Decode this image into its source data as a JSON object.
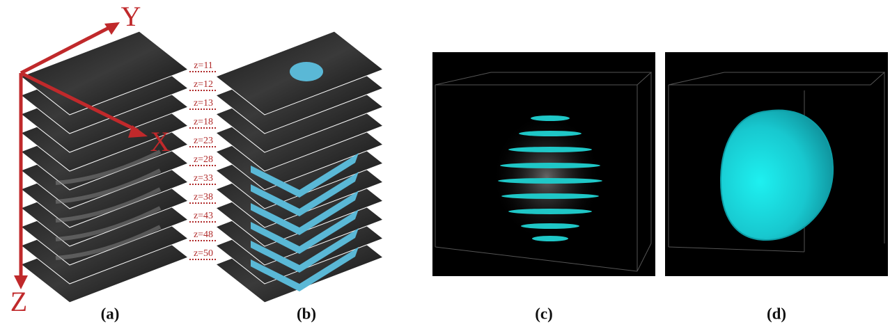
{
  "axes": {
    "y": "Y",
    "x": "X",
    "z": "Z"
  },
  "slice_labels": [
    "z=11",
    "z=12",
    "z=13",
    "z=18",
    "z=23",
    "z=28",
    "z=33",
    "z=38",
    "z=43",
    "z=48",
    "z=50"
  ],
  "panels": [
    "(a)",
    "(b)",
    "(c)",
    "(d)"
  ]
}
